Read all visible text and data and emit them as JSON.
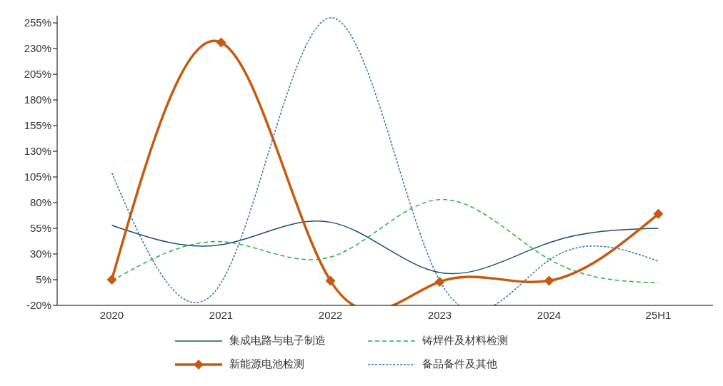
{
  "chart_data": {
    "type": "line",
    "categories": [
      "2020",
      "2021",
      "2022",
      "2023",
      "2024",
      "25H1"
    ],
    "series": [
      {
        "name": "集成电路与电子制造",
        "color": "#1f4e79",
        "values": [
          58,
          39,
          61,
          12,
          41,
          55
        ],
        "line_style": "solid",
        "marker": "none"
      },
      {
        "name": "铸焊件及材料检测",
        "color": "#22b14c",
        "values": [
          4,
          42,
          27,
          83,
          25,
          2
        ],
        "line_style": "dashed",
        "marker": "none"
      },
      {
        "name": "新能源电池检测",
        "color": "#c55a11",
        "values": [
          5,
          236,
          4,
          3,
          4,
          69
        ],
        "line_style": "solid",
        "marker": "diamond"
      },
      {
        "name": "备品备件及其他",
        "color": "#2e75b6",
        "values": [
          109,
          2,
          260,
          4,
          24,
          23
        ],
        "line_style": "dotted",
        "marker": "none"
      }
    ],
    "ylim": [
      -20,
      262
    ],
    "yticks": [
      {
        "value": -20,
        "label": "-20%"
      },
      {
        "value": 5,
        "label": "5%"
      },
      {
        "value": 30,
        "label": "30%"
      },
      {
        "value": 55,
        "label": "55%"
      },
      {
        "value": 80,
        "label": "80%"
      },
      {
        "value": 105,
        "label": "105%"
      },
      {
        "value": 130,
        "label": "130%"
      },
      {
        "value": 155,
        "label": "155%"
      },
      {
        "value": 180,
        "label": "180%"
      },
      {
        "value": 205,
        "label": "205%"
      },
      {
        "value": 230,
        "label": "230%"
      },
      {
        "value": 255,
        "label": "255%"
      }
    ],
    "grid": false,
    "legend": "bottom"
  }
}
